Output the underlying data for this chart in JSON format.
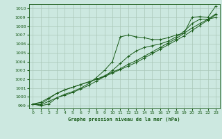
{
  "bg_color": "#cce8e0",
  "grid_color": "#aac8b8",
  "line_color": "#1a5c1a",
  "title": "Graphe pression niveau de la mer (hPa)",
  "xlim": [
    -0.5,
    23.5
  ],
  "ylim": [
    998.7,
    1010.5
  ],
  "yticks": [
    999,
    1000,
    1001,
    1002,
    1003,
    1004,
    1005,
    1006,
    1007,
    1008,
    1009,
    1010
  ],
  "xticks": [
    0,
    1,
    2,
    3,
    4,
    5,
    6,
    7,
    8,
    9,
    10,
    11,
    12,
    13,
    14,
    15,
    16,
    17,
    18,
    19,
    20,
    21,
    22,
    23
  ],
  "series": [
    [
      999.2,
      999.0,
      999.2,
      999.9,
      1000.3,
      1000.6,
      1001.0,
      1001.5,
      1002.2,
      1003.0,
      1004.0,
      1006.8,
      1007.0,
      1006.8,
      1006.7,
      1006.5,
      1006.5,
      1006.7,
      1007.0,
      1007.2,
      1009.0,
      1009.1,
      1009.0,
      1010.3
    ],
    [
      999.2,
      999.1,
      999.5,
      999.9,
      1000.2,
      1000.5,
      1000.9,
      1001.3,
      1001.8,
      1002.3,
      1003.0,
      1003.8,
      1004.6,
      1005.2,
      1005.6,
      1005.8,
      1006.0,
      1006.3,
      1006.8,
      1007.4,
      1008.3,
      1008.8,
      1008.8,
      1009.0
    ],
    [
      999.2,
      999.2,
      999.8,
      1000.4,
      1000.8,
      1001.1,
      1001.4,
      1001.7,
      1002.0,
      1002.4,
      1002.8,
      1003.2,
      1003.7,
      1004.1,
      1004.6,
      1005.1,
      1005.6,
      1006.1,
      1006.6,
      1007.2,
      1007.8,
      1008.3,
      1008.8,
      1009.4
    ],
    [
      999.2,
      999.4,
      999.9,
      1000.4,
      1000.8,
      1001.1,
      1001.4,
      1001.7,
      1002.0,
      1002.3,
      1002.7,
      1003.1,
      1003.5,
      1003.9,
      1004.4,
      1004.9,
      1005.4,
      1005.9,
      1006.4,
      1006.9,
      1007.5,
      1008.1,
      1008.7,
      1009.3
    ]
  ]
}
